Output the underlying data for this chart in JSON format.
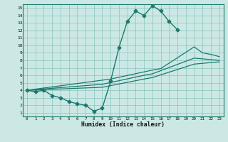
{
  "xlabel": "Humidex (Indice chaleur)",
  "bg_color": "#cce8e4",
  "grid_color": "#88c4bc",
  "line_color": "#1a7a6e",
  "xlim": [
    -0.5,
    23.5
  ],
  "ylim": [
    0.5,
    15.5
  ],
  "xticks": [
    0,
    1,
    2,
    3,
    4,
    5,
    6,
    7,
    8,
    9,
    10,
    11,
    12,
    13,
    14,
    15,
    16,
    17,
    18,
    19,
    20,
    21,
    22,
    23
  ],
  "yticks": [
    1,
    2,
    3,
    4,
    5,
    6,
    7,
    8,
    9,
    10,
    11,
    12,
    13,
    14,
    15
  ],
  "series": [
    {
      "x": [
        0,
        1,
        2,
        3,
        4,
        5,
        6,
        7,
        8,
        9,
        10,
        11,
        12,
        13,
        14,
        15,
        16,
        17,
        18
      ],
      "y": [
        4,
        3.8,
        4.0,
        3.3,
        3.0,
        2.5,
        2.2,
        2.0,
        1.2,
        1.6,
        5.2,
        9.7,
        13.2,
        14.6,
        14.0,
        15.3,
        14.6,
        13.2,
        12.1
      ],
      "marker": "D",
      "marker_size": 2.5,
      "linewidth": 1.0,
      "zorder": 3
    },
    {
      "x": [
        0,
        10,
        15,
        16,
        20,
        21,
        22,
        23
      ],
      "y": [
        4,
        5.5,
        6.7,
        6.9,
        9.8,
        9.0,
        8.8,
        8.5
      ],
      "marker": null,
      "linewidth": 0.9,
      "zorder": 2
    },
    {
      "x": [
        0,
        9,
        14,
        15,
        20,
        23
      ],
      "y": [
        4,
        4.8,
        6.0,
        6.2,
        8.3,
        8.0
      ],
      "marker": null,
      "linewidth": 0.9,
      "zorder": 2
    },
    {
      "x": [
        0,
        9,
        14,
        15,
        20,
        23
      ],
      "y": [
        4,
        4.4,
        5.5,
        5.7,
        7.5,
        7.8
      ],
      "marker": null,
      "linewidth": 0.9,
      "zorder": 2
    }
  ]
}
